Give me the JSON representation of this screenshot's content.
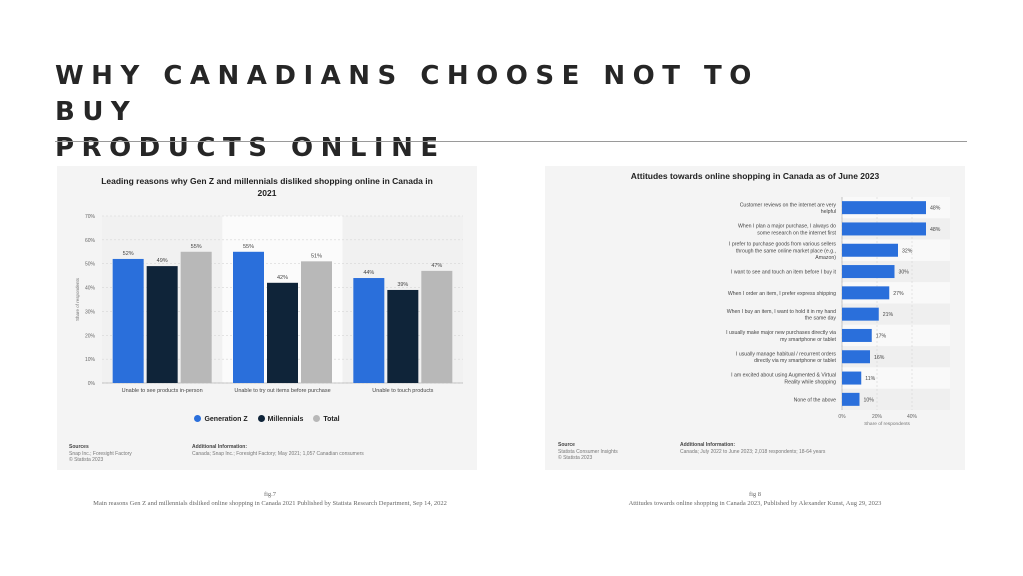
{
  "page": {
    "title_line1": "WHY CANADIANS CHOOSE NOT TO BUY",
    "title_line2": "PRODUCTS ONLINE"
  },
  "figure1": {
    "caption_label": "fig.7",
    "caption_text": "Main reasons Gen Z and millennials disliked online shopping in Canada 2021 Published by Statista Research Department, Sep 14, 2022",
    "sources_title": "Sources",
    "sources_lines": [
      "Snap Inc.; Foresight Factory",
      "© Statista 2023"
    ],
    "info_title": "Additional Information:",
    "info_text": "Canada; Snap Inc.; Foresight Factory; May 2021; 1,057 Canadian consumers"
  },
  "figure2": {
    "caption_label": "fig 8",
    "caption_text": "Attitudes towards online shopping in Canada 2023, Published by Alexander Kunst, Aug 29, 2023",
    "sources_title": "Source",
    "sources_lines": [
      "Statista Consumer Insights",
      "© Statista 2023"
    ],
    "info_title": "Additional Information:",
    "info_text": "Canada; July 2022 to June 2023; 2,018 respondents; 18-64 years"
  },
  "chart_data": [
    {
      "type": "bar",
      "title_line1": "Leading reasons why Gen Z and millennials disliked shopping online in Canada in",
      "title_line2": "2021",
      "ylabel": "Share of respondents",
      "ylim": [
        0,
        70
      ],
      "yticks": [
        "0%",
        "10%",
        "20%",
        "30%",
        "40%",
        "50%",
        "60%",
        "70%"
      ],
      "categories": [
        "Unable to see products in-person",
        "Unable to try out items before purchase",
        "Unable to touch products"
      ],
      "series": [
        {
          "name": "Generation Z",
          "color": "#2a6fdb",
          "values": [
            52,
            55,
            44
          ]
        },
        {
          "name": "Millennials",
          "color": "#0f2439",
          "values": [
            49,
            42,
            39
          ]
        },
        {
          "name": "Total",
          "color": "#b8b8b8",
          "values": [
            55,
            51,
            47
          ]
        }
      ],
      "grid": true,
      "legend": "bottom"
    },
    {
      "type": "bar",
      "orientation": "horizontal",
      "title": "Attitudes towards online shopping in Canada as of June 2023",
      "xlabel": "Share of respondents",
      "xlim": [
        0,
        60
      ],
      "xticks": [
        "0%",
        "20%",
        "40%"
      ],
      "bar_color": "#2a6fdb",
      "categories": [
        [
          "Customer reviews on the internet are very",
          "helpful"
        ],
        [
          "When I plan a major purchase, I always do",
          "some research on the internet first"
        ],
        [
          "I prefer to purchase goods from various sellers",
          "through the same online market place (e.g.,",
          "Amazon)"
        ],
        [
          "I want to see and touch an item before I buy it"
        ],
        [
          "When I order an item, I prefer express shipping"
        ],
        [
          "When I buy an item, I want to hold it in my hand",
          "the same day"
        ],
        [
          "I usually make major new purchases directly via",
          "my smartphone or tablet"
        ],
        [
          "I usually manage habitual / recurrent orders",
          "directly via my smartphone or tablet"
        ],
        [
          "I am excited about using Augmented & Virtual",
          "Reality while shopping"
        ],
        [
          "None of the above"
        ]
      ],
      "values": [
        48,
        48,
        32,
        30,
        27,
        21,
        17,
        16,
        11,
        10
      ],
      "value_labels": [
        "48%",
        "48%",
        "32%",
        "30%",
        "27%",
        "21%",
        "17%",
        "16%",
        "11%",
        "10%"
      ],
      "grid": true
    }
  ]
}
